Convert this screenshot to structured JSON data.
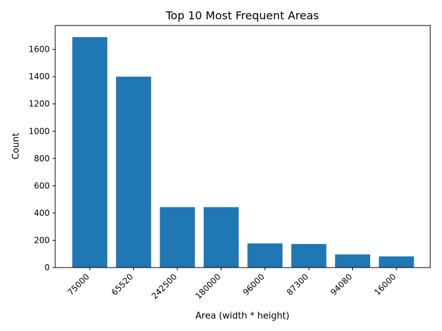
{
  "colors": {
    "bar": "#1f77b4",
    "axis": "#000000",
    "background": "#ffffff"
  },
  "chart_data": {
    "type": "bar",
    "title": "Top 10 Most Frequent Areas",
    "xlabel": "Area (width * height)",
    "ylabel": "Count",
    "categories": [
      "75000",
      "65520",
      "242500",
      "180000",
      "96000",
      "87300",
      "94080",
      "16000"
    ],
    "values": [
      1690,
      1400,
      443,
      443,
      177,
      173,
      96,
      82
    ],
    "ylim": [
      0,
      1775
    ],
    "yticks": [
      0,
      200,
      400,
      600,
      800,
      1000,
      1200,
      1400,
      1600
    ],
    "grid": false,
    "legend": "none"
  }
}
